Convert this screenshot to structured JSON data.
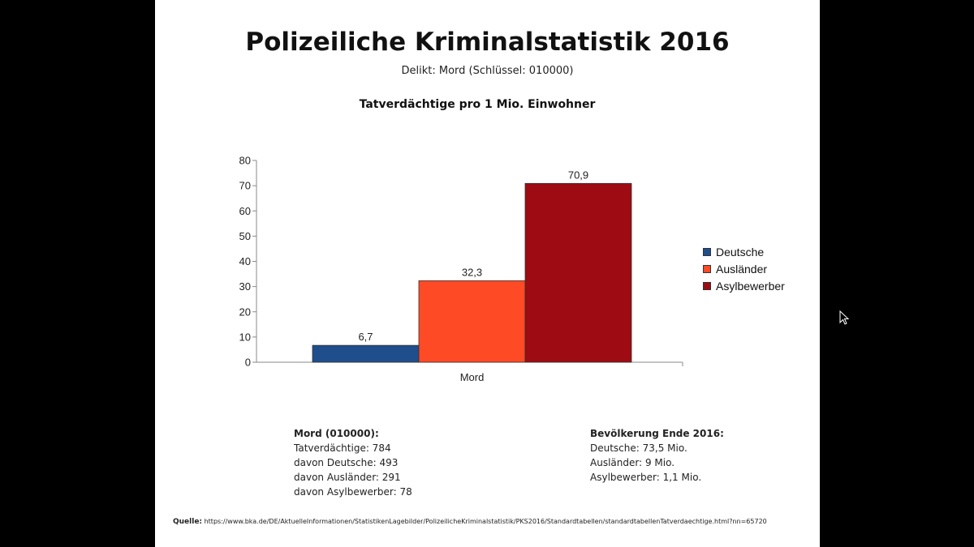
{
  "slide": {
    "title": "Polizeiliche Kriminalstatistik 2016",
    "subtitle": "Delikt: Mord (Schlüssel: 010000)"
  },
  "chart_data": {
    "type": "bar",
    "title": "Tatverdächtige pro 1 Mio. Einwohner",
    "categories": [
      "Mord"
    ],
    "series": [
      {
        "name": "Deutsche",
        "values": [
          6.7
        ],
        "label": "6,7",
        "color": "#1f4e8c"
      },
      {
        "name": "Ausländer",
        "values": [
          32.3
        ],
        "label": "32,3",
        "color": "#ff4a26"
      },
      {
        "name": "Asylbewerber",
        "values": [
          70.9
        ],
        "label": "70,9",
        "color": "#9e0b12"
      }
    ],
    "ylim": [
      0,
      80
    ],
    "yticks": [
      "0",
      "10",
      "20",
      "30",
      "40",
      "50",
      "60",
      "70",
      "80"
    ],
    "xlabel": "",
    "ylabel": "",
    "grid": false,
    "legend": "right"
  },
  "notes": {
    "left": {
      "heading": "Mord (010000):",
      "lines": [
        "Tatverdächtige: 784",
        "davon Deutsche: 493",
        "davon Ausländer: 291",
        "davon Asylbewerber: 78"
      ]
    },
    "right": {
      "heading": "Bevölkerung Ende 2016:",
      "lines": [
        "Deutsche: 73,5 Mio.",
        "Ausländer: 9 Mio.",
        "Asylbewerber: 1,1 Mio."
      ]
    }
  },
  "source": {
    "label": "Quelle:",
    "url": "https://www.bka.de/DE/AktuelleInformationen/StatistikenLagebilder/PolizeilicheKriminalstatistik/PKS2016/Standardtabellen/standardtabellenTatverdaechtige.html?nn=65720"
  }
}
